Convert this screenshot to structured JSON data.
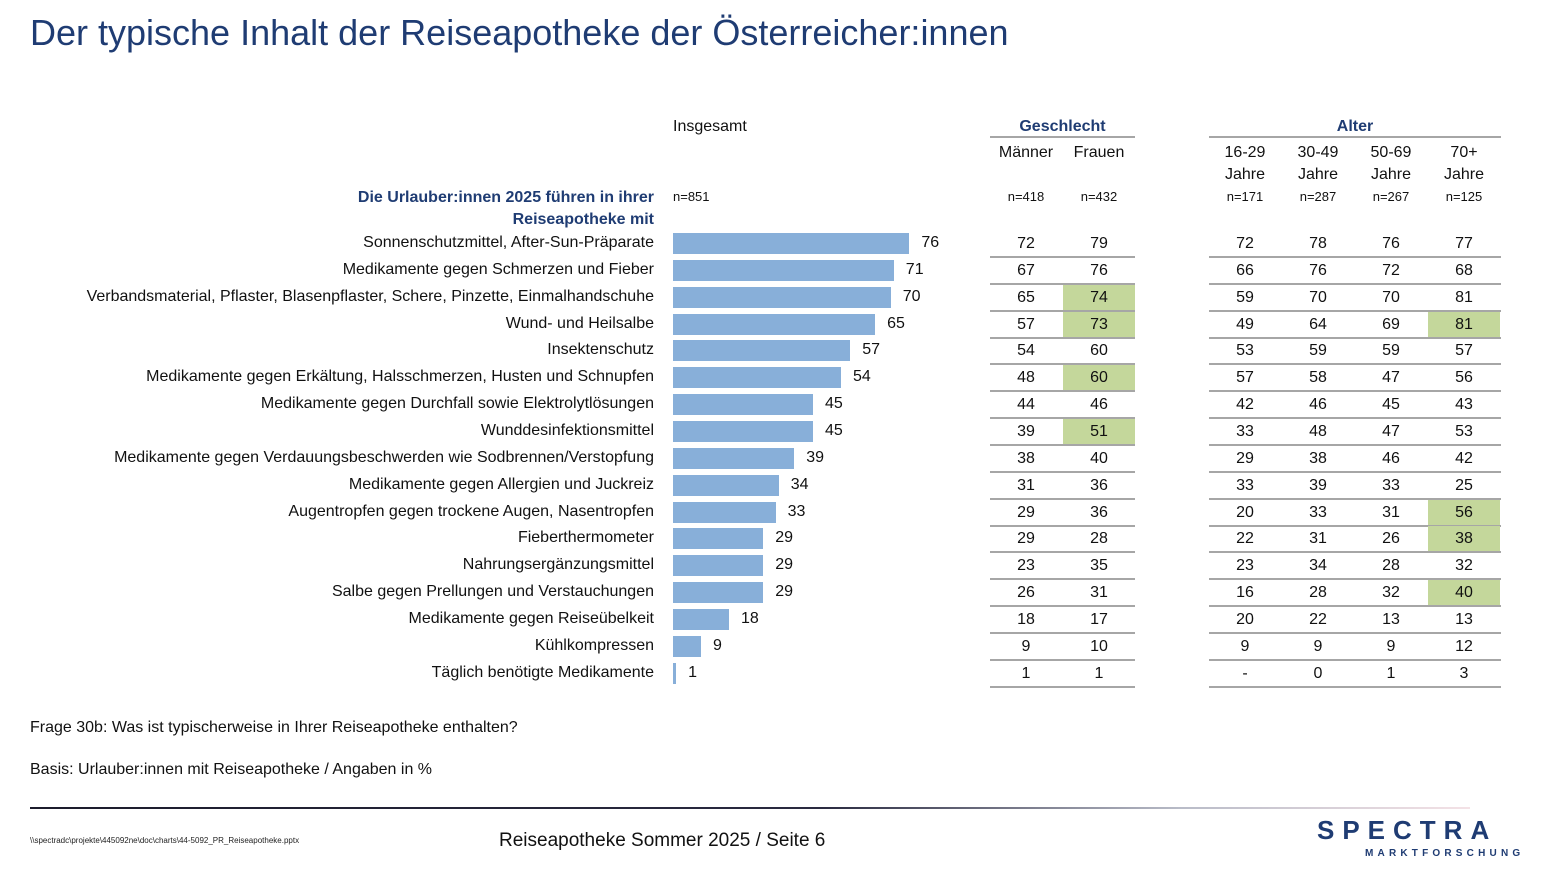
{
  "title": "Der typische Inhalt der Reiseapotheke der Österreicher:innen",
  "intro": "Die Urlauber:innen 2025 führen in ihrer Reiseapotheke mit",
  "total": {
    "header": "Insgesamt",
    "n": "n=851"
  },
  "gender": {
    "header": "Geschlecht",
    "columns": [
      {
        "label": "Männer",
        "n": "n=418"
      },
      {
        "label": "Frauen",
        "n": "n=432"
      }
    ]
  },
  "age": {
    "header": "Alter",
    "columns": [
      {
        "label1": "16-29",
        "label2": "Jahre",
        "n": "n=171"
      },
      {
        "label1": "30-49",
        "label2": "Jahre",
        "n": "n=287"
      },
      {
        "label1": "50-69",
        "label2": "Jahre",
        "n": "n=267"
      },
      {
        "label1": "70+",
        "label2": "Jahre",
        "n": "n=125"
      }
    ]
  },
  "highlight_color": "#c4d79b",
  "bar_color": "#88afd9",
  "chart_data": {
    "type": "bar",
    "orientation": "horizontal",
    "title": "Der typische Inhalt der Reiseapotheke der Österreicher:innen",
    "xlabel": "",
    "ylabel": "",
    "unit": "%",
    "xlim": [
      0,
      100
    ],
    "grid": false,
    "categories": [
      "Sonnenschutzmittel, After-Sun-Präparate",
      "Medikamente gegen Schmerzen und Fieber",
      "Verbandsmaterial, Pflaster, Blasenpflaster, Schere, Pinzette, Einmalhandschuhe",
      "Wund- und Heilsalbe",
      "Insektenschutz",
      "Medikamente gegen Erkältung, Halsschmerzen, Husten und Schnupfen",
      "Medikamente gegen Durchfall sowie Elektrolytlösungen",
      "Wunddesinfektionsmittel",
      "Medikamente gegen Verdauungsbeschwerden wie Sodbrennen/Verstopfung",
      "Medikamente gegen Allergien und Juckreiz",
      "Augentropfen gegen trockene Augen, Nasentropfen",
      "Fieberthermometer",
      "Nahrungsergänzungsmittel",
      "Salbe gegen Prellungen und Verstauchungen",
      "Medikamente gegen Reiseübelkeit",
      "Kühlkompressen",
      "Täglich benötigte Medikamente"
    ],
    "values": [
      76,
      71,
      70,
      65,
      57,
      54,
      45,
      45,
      39,
      34,
      33,
      29,
      29,
      29,
      18,
      9,
      1
    ],
    "table": {
      "columns": [
        "Männer",
        "Frauen",
        "16-29 Jahre",
        "30-49 Jahre",
        "50-69 Jahre",
        "70+ Jahre"
      ],
      "rows": [
        [
          "72",
          "79",
          "72",
          "78",
          "76",
          "77"
        ],
        [
          "67",
          "76",
          "66",
          "76",
          "72",
          "68"
        ],
        [
          "65",
          "74",
          "59",
          "70",
          "70",
          "81"
        ],
        [
          "57",
          "73",
          "49",
          "64",
          "69",
          "81"
        ],
        [
          "54",
          "60",
          "53",
          "59",
          "59",
          "57"
        ],
        [
          "48",
          "60",
          "57",
          "58",
          "47",
          "56"
        ],
        [
          "44",
          "46",
          "42",
          "46",
          "45",
          "43"
        ],
        [
          "39",
          "51",
          "33",
          "48",
          "47",
          "53"
        ],
        [
          "38",
          "40",
          "29",
          "38",
          "46",
          "42"
        ],
        [
          "31",
          "36",
          "33",
          "39",
          "33",
          "25"
        ],
        [
          "29",
          "36",
          "20",
          "33",
          "31",
          "56"
        ],
        [
          "29",
          "28",
          "22",
          "31",
          "26",
          "38"
        ],
        [
          "23",
          "35",
          "23",
          "34",
          "28",
          "32"
        ],
        [
          "26",
          "31",
          "16",
          "28",
          "32",
          "40"
        ],
        [
          "18",
          "17",
          "20",
          "22",
          "13",
          "13"
        ],
        [
          "9",
          "10",
          "9",
          "9",
          "9",
          "12"
        ],
        [
          "1",
          "1",
          "-",
          "0",
          "1",
          "3"
        ]
      ],
      "highlighted": [
        [
          2,
          1
        ],
        [
          3,
          1
        ],
        [
          5,
          1
        ],
        [
          7,
          1
        ],
        [
          3,
          5
        ],
        [
          10,
          5
        ],
        [
          11,
          5
        ],
        [
          13,
          5
        ]
      ]
    }
  },
  "footer": {
    "question": "Frage 30b: Was ist typischerweise in Ihrer Reiseapotheke enthalten?",
    "basis": "Basis: Urlauber:innen mit Reiseapotheke / Angaben in %",
    "filepath": "\\\\spectradc\\projekte\\445092ne\\doc\\charts\\44-5092_PR_Reiseapotheke.pptx",
    "page_info": "Reiseapotheke Sommer 2025  /  Seite 6",
    "logo_word": "SPECTRA",
    "logo_sub": "MARKTFORSCHUNG"
  }
}
